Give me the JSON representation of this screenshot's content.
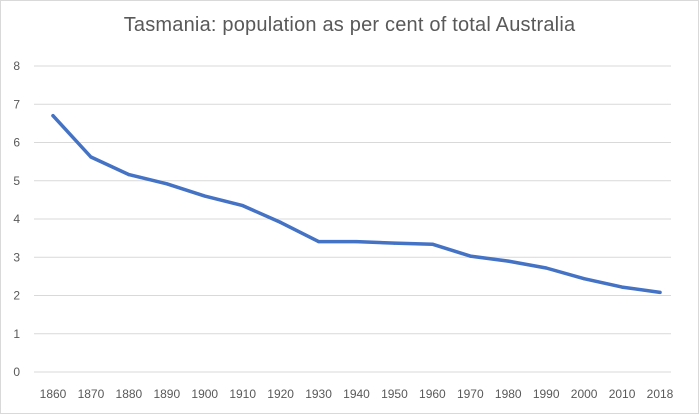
{
  "chart_data": {
    "type": "line",
    "title": "Tasmania: population as per cent of total Australia",
    "xlabel": "",
    "ylabel": "",
    "categories": [
      "1860",
      "1870",
      "1880",
      "1890",
      "1900",
      "1910",
      "1920",
      "1930",
      "1940",
      "1950",
      "1960",
      "1970",
      "1980",
      "1990",
      "2000",
      "2010",
      "2018"
    ],
    "series": [
      {
        "values": [
          6.7,
          5.62,
          5.16,
          4.92,
          4.6,
          4.35,
          3.91,
          3.41,
          3.41,
          3.37,
          3.34,
          3.03,
          2.9,
          2.72,
          2.44,
          2.22,
          2.08
        ],
        "color": "#4472c4"
      }
    ],
    "ylim": [
      0,
      8
    ],
    "yticks": [
      0,
      1,
      2,
      3,
      4,
      5,
      6,
      7,
      8
    ],
    "grid": true,
    "legend": "none"
  }
}
